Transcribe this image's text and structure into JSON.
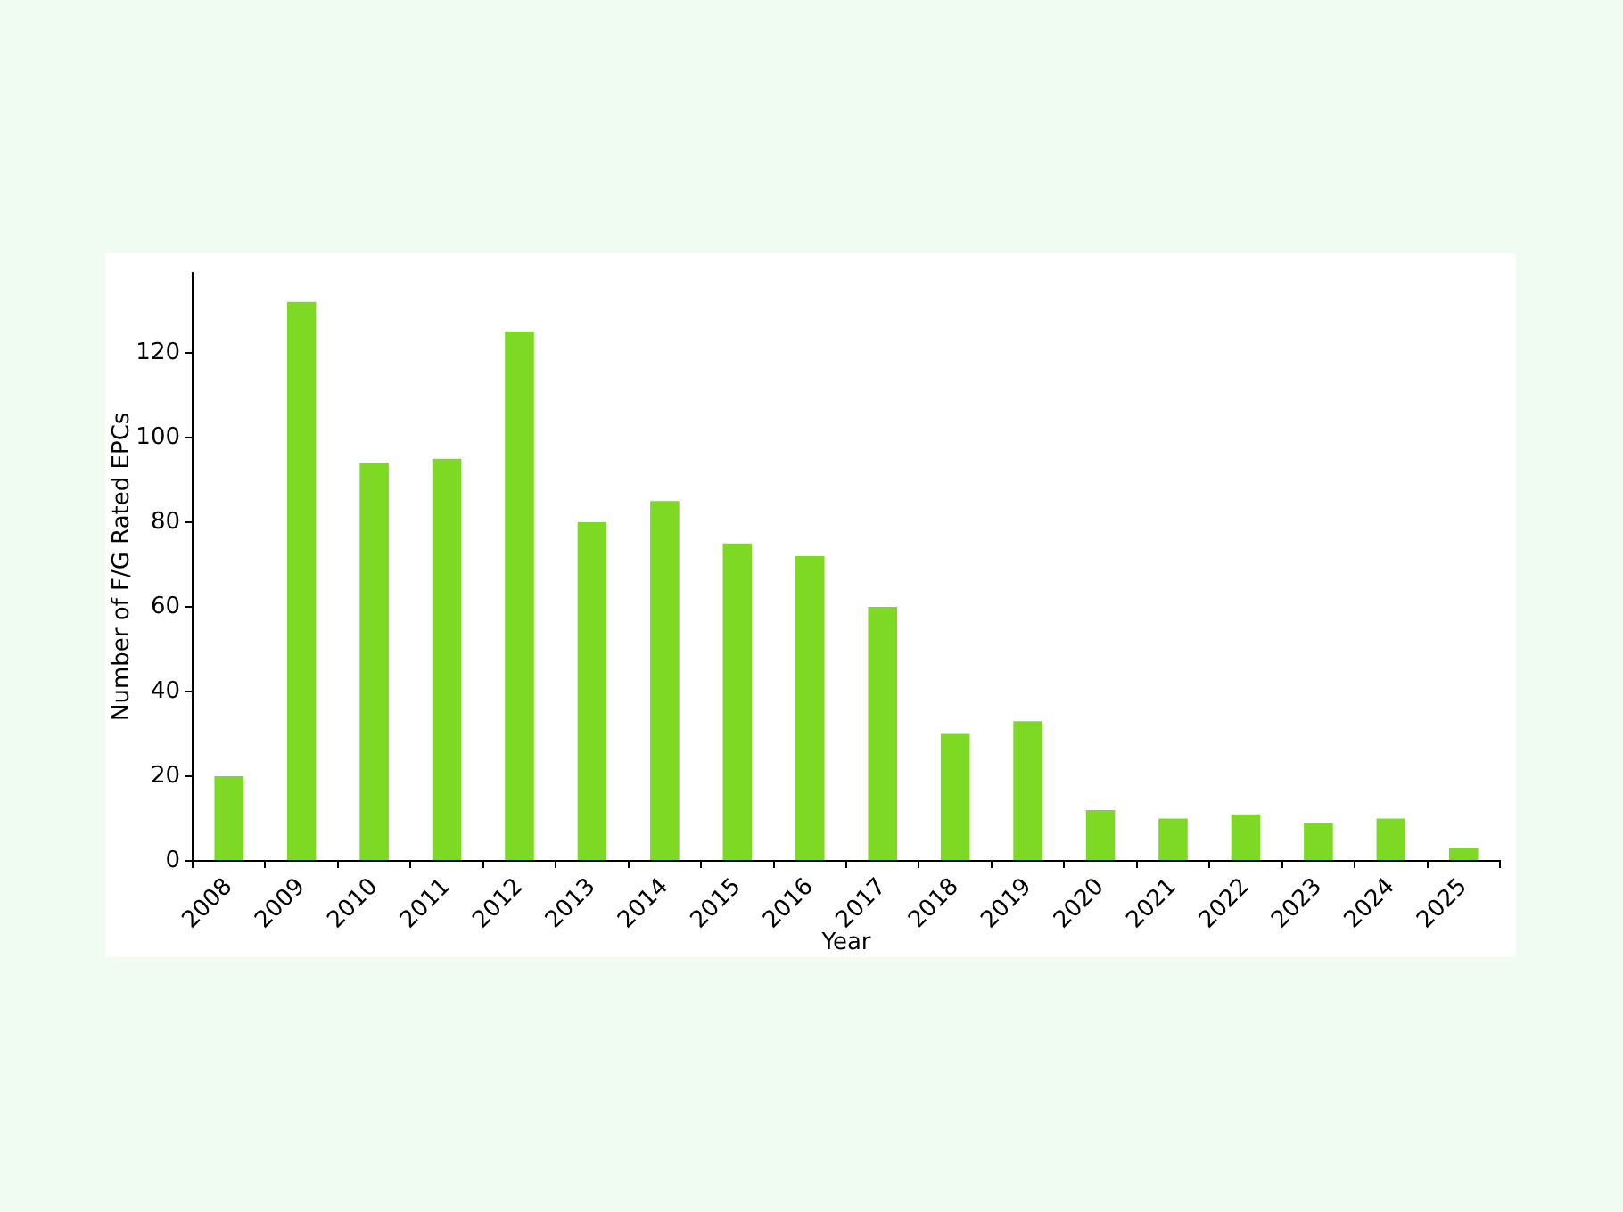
{
  "chart_data": {
    "type": "bar",
    "xlabel": "Year",
    "ylabel": "Number of F/G Rated EPCs",
    "categories": [
      "2008",
      "2009",
      "2010",
      "2011",
      "2012",
      "2013",
      "2014",
      "2015",
      "2016",
      "2017",
      "2018",
      "2019",
      "2020",
      "2021",
      "2022",
      "2023",
      "2024",
      "2025"
    ],
    "values": [
      20,
      132,
      94,
      95,
      125,
      80,
      85,
      75,
      72,
      60,
      30,
      33,
      12,
      10,
      11,
      9,
      10,
      3
    ],
    "color": "#7ed925",
    "ylim": [
      0,
      139
    ],
    "yticks": [
      0,
      20,
      40,
      60,
      80,
      100,
      120
    ],
    "grid": false,
    "legend": false
  }
}
